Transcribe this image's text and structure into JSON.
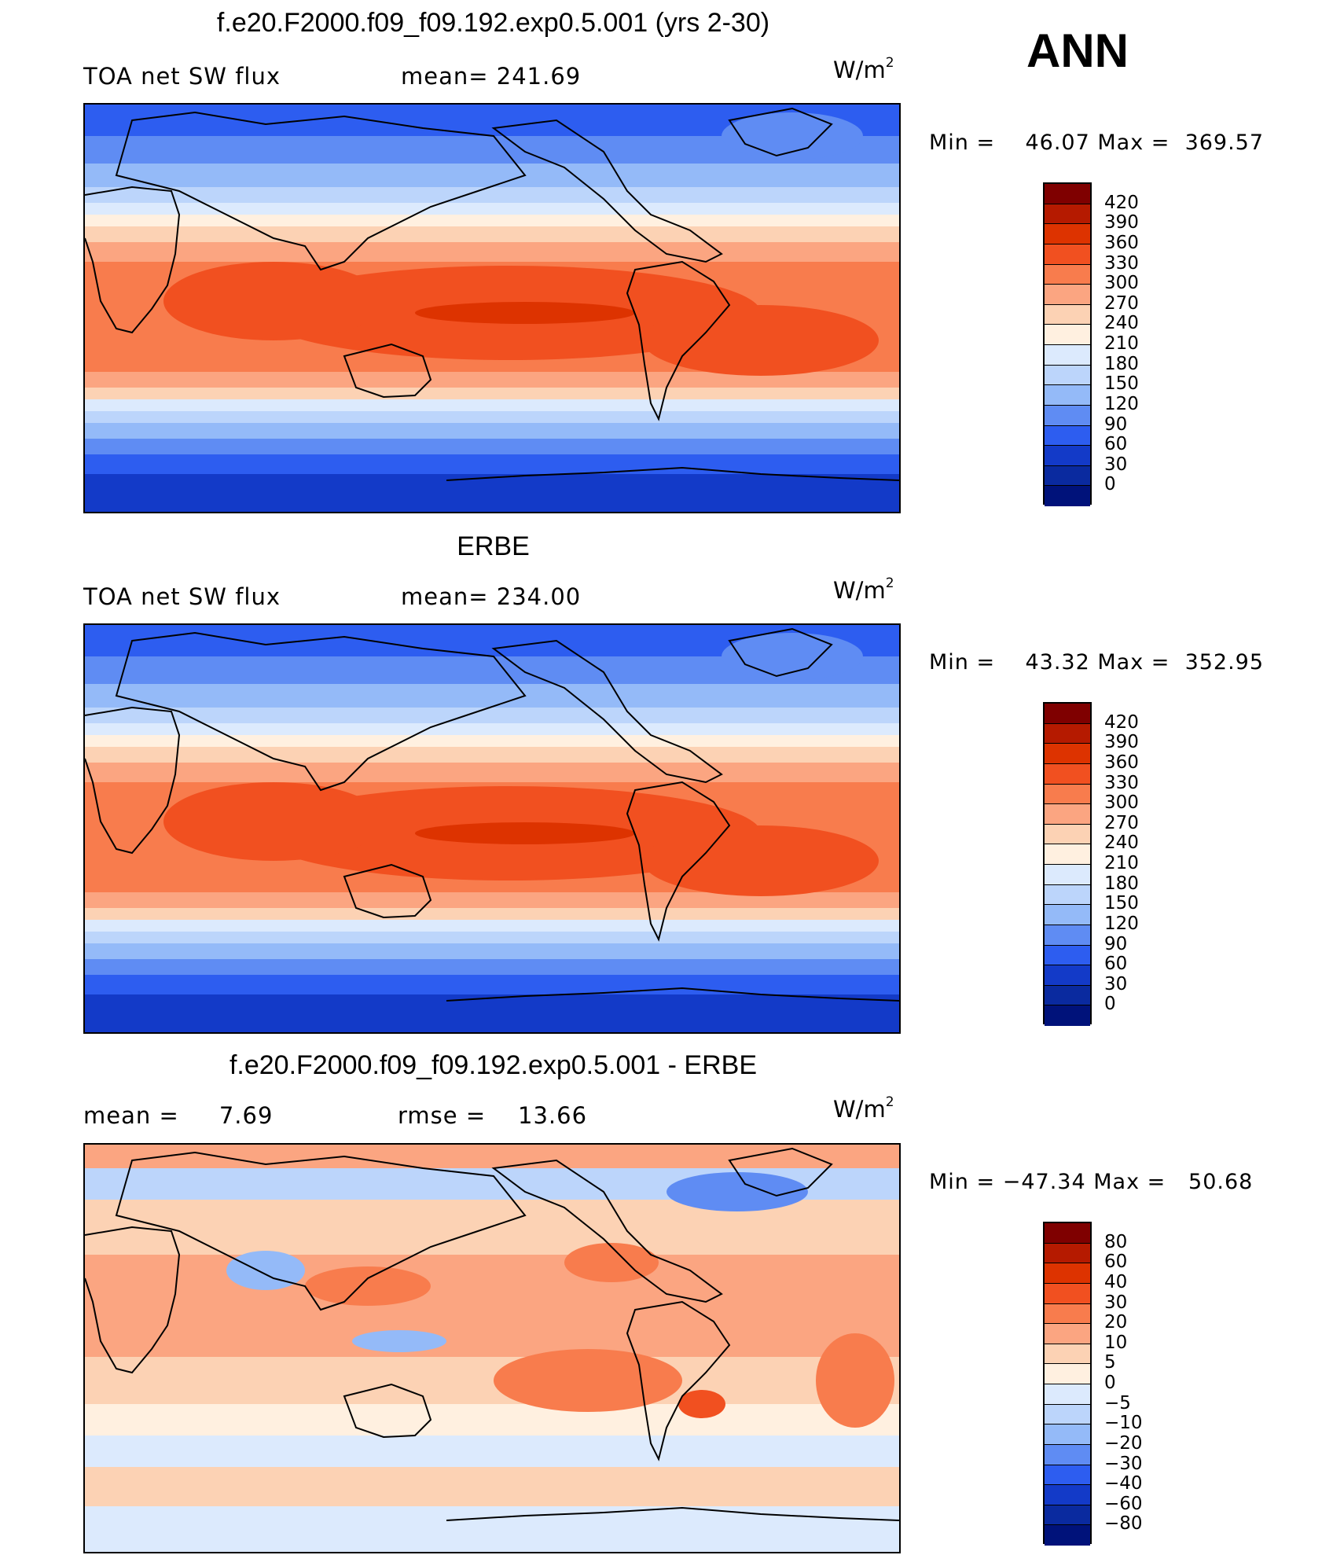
{
  "season": "ANN",
  "panels": [
    {
      "id": "model",
      "title": "f.e20.F2000.f09_f09.192.exp0.5.001 (yrs 2-30)",
      "variable": "TOA net SW flux",
      "stat_left": "",
      "stat_right": "mean= 241.69",
      "units": "W/m",
      "units_exp": "2",
      "min_label": "Min =",
      "min_value": "46.07",
      "max_label": "Max =",
      "max_value": "369.57",
      "colorbar": {
        "levels": [
          "420",
          "390",
          "360",
          "330",
          "300",
          "270",
          "240",
          "210",
          "180",
          "150",
          "120",
          "90",
          "60",
          "30",
          "0"
        ],
        "colors": [
          "#7f0000",
          "#b51a00",
          "#dd3300",
          "#f15020",
          "#f87c4d",
          "#fba581",
          "#fcd2b4",
          "#fff0e0",
          "#dceafd",
          "#bcd5fb",
          "#94baf8",
          "#5f8cf3",
          "#2d5df0",
          "#133ac8",
          "#0a2a9f",
          "#00127a"
        ]
      },
      "map": {
        "scheme": "absolute-flux",
        "ocean_color": "#f06a35"
      }
    },
    {
      "id": "obs",
      "title": "ERBE",
      "variable": "TOA net SW flux",
      "stat_left": "",
      "stat_right": "mean= 234.00",
      "units": "W/m",
      "units_exp": "2",
      "min_label": "Min =",
      "min_value": "43.32",
      "max_label": "Max =",
      "max_value": "352.95",
      "colorbar": {
        "levels": [
          "420",
          "390",
          "360",
          "330",
          "300",
          "270",
          "240",
          "210",
          "180",
          "150",
          "120",
          "90",
          "60",
          "30",
          "0"
        ],
        "colors": [
          "#7f0000",
          "#b51a00",
          "#dd3300",
          "#f15020",
          "#f87c4d",
          "#fba581",
          "#fcd2b4",
          "#fff0e0",
          "#dceafd",
          "#bcd5fb",
          "#94baf8",
          "#5f8cf3",
          "#2d5df0",
          "#133ac8",
          "#0a2a9f",
          "#00127a"
        ]
      },
      "map": {
        "scheme": "absolute-flux",
        "ocean_color": "#f47a48"
      }
    },
    {
      "id": "diff",
      "title": "f.e20.F2000.f09_f09.192.exp0.5.001 - ERBE",
      "variable": "",
      "stat_left": "mean =     7.69",
      "stat_right": "rmse =    13.66",
      "units": "W/m",
      "units_exp": "2",
      "min_label": "Min =",
      "min_value": "−47.34",
      "max_label": "Max =",
      "max_value": "50.68",
      "colorbar": {
        "levels": [
          "80",
          "60",
          "40",
          "30",
          "20",
          "10",
          "5",
          "0",
          "−5",
          "−10",
          "−20",
          "−30",
          "−40",
          "−60",
          "−80"
        ],
        "colors": [
          "#7f0000",
          "#b51a00",
          "#dd3300",
          "#f15020",
          "#f87c4d",
          "#fba581",
          "#fcd2b4",
          "#fff0e0",
          "#dceafd",
          "#bcd5fb",
          "#94baf8",
          "#5f8cf3",
          "#2d5df0",
          "#133ac8",
          "#0a2a9f",
          "#00127a"
        ]
      },
      "map": {
        "scheme": "difference",
        "ocean_color": "#fcc6a8"
      }
    }
  ]
}
